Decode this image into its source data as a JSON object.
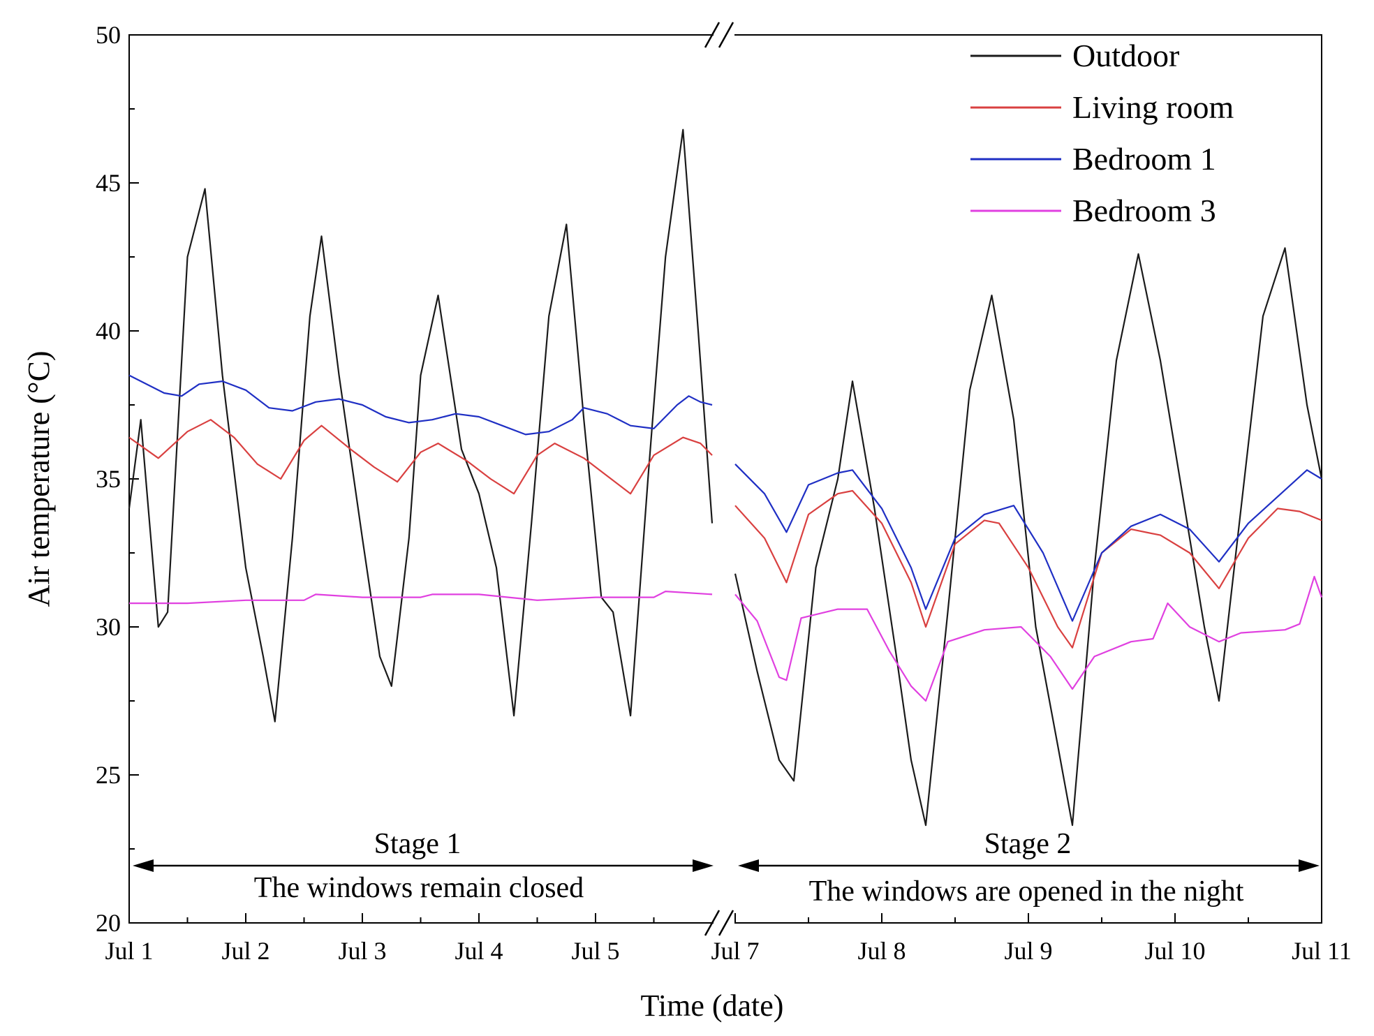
{
  "chart_data": {
    "type": "line",
    "title": "",
    "xlabel": "Time (date)",
    "ylabel": "Air temperature (°C)",
    "ylim": [
      20,
      50
    ],
    "yticks": [
      "20",
      "25",
      "30",
      "35",
      "40",
      "45",
      "50"
    ],
    "xlim_segment1": [
      0,
      5.0
    ],
    "xlim_segment2": [
      6.0,
      10.0
    ],
    "xticks": [
      {
        "day": 0,
        "label": "Jul 1"
      },
      {
        "day": 1,
        "label": "Jul 2"
      },
      {
        "day": 2,
        "label": "Jul 3"
      },
      {
        "day": 3,
        "label": "Jul 4"
      },
      {
        "day": 4,
        "label": "Jul 5"
      },
      {
        "day": 6,
        "label": "Jul 7"
      },
      {
        "day": 7,
        "label": "Jul 8"
      },
      {
        "day": 8,
        "label": "Jul 9"
      },
      {
        "day": 9,
        "label": "Jul 10"
      },
      {
        "day": 10,
        "label": "Jul 11"
      }
    ],
    "legend": {
      "position": "top-right",
      "entries": [
        "Outdoor",
        "Living room",
        "Bedroom 1",
        "Bedroom 3"
      ]
    },
    "annotations": {
      "stage1_title": "Stage 1",
      "stage1_desc": "The windows remain closed",
      "stage2_title": "Stage 2",
      "stage2_desc": "The windows are opened in the night"
    },
    "series": [
      {
        "name": "Outdoor",
        "color": "#1a1a1a",
        "points": [
          [
            0.0,
            34.0
          ],
          [
            0.1,
            37.0
          ],
          [
            0.25,
            30.0
          ],
          [
            0.33,
            30.5
          ],
          [
            0.5,
            42.5
          ],
          [
            0.65,
            44.8
          ],
          [
            0.8,
            38.5
          ],
          [
            1.0,
            32.0
          ],
          [
            1.15,
            29.0
          ],
          [
            1.25,
            26.8
          ],
          [
            1.4,
            33.0
          ],
          [
            1.55,
            40.5
          ],
          [
            1.65,
            43.2
          ],
          [
            1.8,
            38.5
          ],
          [
            2.0,
            33.0
          ],
          [
            2.15,
            29.0
          ],
          [
            2.25,
            28.0
          ],
          [
            2.4,
            33.0
          ],
          [
            2.5,
            38.5
          ],
          [
            2.65,
            41.2
          ],
          [
            2.85,
            36.0
          ],
          [
            3.0,
            34.5
          ],
          [
            3.15,
            32.0
          ],
          [
            3.3,
            27.0
          ],
          [
            3.45,
            33.5
          ],
          [
            3.6,
            40.5
          ],
          [
            3.75,
            43.6
          ],
          [
            3.9,
            37.0
          ],
          [
            4.05,
            31.0
          ],
          [
            4.15,
            30.5
          ],
          [
            4.3,
            27.0
          ],
          [
            4.45,
            35.0
          ],
          [
            4.6,
            42.5
          ],
          [
            4.75,
            46.8
          ],
          [
            4.88,
            40.0
          ],
          [
            5.0,
            33.5
          ],
          [
            6.0,
            31.8
          ],
          [
            6.15,
            28.5
          ],
          [
            6.3,
            25.5
          ],
          [
            6.4,
            24.8
          ],
          [
            6.55,
            32.0
          ],
          [
            6.7,
            35.0
          ],
          [
            6.8,
            38.3
          ],
          [
            6.95,
            34.0
          ],
          [
            7.1,
            29.0
          ],
          [
            7.2,
            25.5
          ],
          [
            7.3,
            23.3
          ],
          [
            7.45,
            30.5
          ],
          [
            7.6,
            38.0
          ],
          [
            7.75,
            41.2
          ],
          [
            7.9,
            37.0
          ],
          [
            8.05,
            30.0
          ],
          [
            8.2,
            26.0
          ],
          [
            8.3,
            23.3
          ],
          [
            8.45,
            32.0
          ],
          [
            8.6,
            39.0
          ],
          [
            8.75,
            42.6
          ],
          [
            8.9,
            39.0
          ],
          [
            9.05,
            34.5
          ],
          [
            9.2,
            30.0
          ],
          [
            9.3,
            27.5
          ],
          [
            9.45,
            34.0
          ],
          [
            9.6,
            40.5
          ],
          [
            9.75,
            42.8
          ],
          [
            9.9,
            37.5
          ],
          [
            10.0,
            35.0
          ]
        ]
      },
      {
        "name": "Living room",
        "color": "#d94040",
        "points": [
          [
            0.0,
            36.4
          ],
          [
            0.25,
            35.7
          ],
          [
            0.5,
            36.6
          ],
          [
            0.7,
            37.0
          ],
          [
            0.9,
            36.4
          ],
          [
            1.1,
            35.5
          ],
          [
            1.3,
            35.0
          ],
          [
            1.5,
            36.3
          ],
          [
            1.65,
            36.8
          ],
          [
            1.9,
            36.0
          ],
          [
            2.1,
            35.4
          ],
          [
            2.3,
            34.9
          ],
          [
            2.5,
            35.9
          ],
          [
            2.65,
            36.2
          ],
          [
            2.9,
            35.6
          ],
          [
            3.1,
            35.0
          ],
          [
            3.3,
            34.5
          ],
          [
            3.5,
            35.8
          ],
          [
            3.65,
            36.2
          ],
          [
            3.9,
            35.7
          ],
          [
            4.1,
            35.1
          ],
          [
            4.3,
            34.5
          ],
          [
            4.5,
            35.8
          ],
          [
            4.75,
            36.4
          ],
          [
            4.9,
            36.2
          ],
          [
            5.0,
            35.8
          ],
          [
            6.0,
            34.1
          ],
          [
            6.2,
            33.0
          ],
          [
            6.35,
            31.5
          ],
          [
            6.5,
            33.8
          ],
          [
            6.7,
            34.5
          ],
          [
            6.8,
            34.6
          ],
          [
            7.0,
            33.5
          ],
          [
            7.2,
            31.5
          ],
          [
            7.3,
            30.0
          ],
          [
            7.5,
            32.8
          ],
          [
            7.7,
            33.6
          ],
          [
            7.8,
            33.5
          ],
          [
            8.0,
            32.0
          ],
          [
            8.2,
            30.0
          ],
          [
            8.3,
            29.3
          ],
          [
            8.5,
            32.5
          ],
          [
            8.7,
            33.3
          ],
          [
            8.9,
            33.1
          ],
          [
            9.1,
            32.5
          ],
          [
            9.3,
            31.3
          ],
          [
            9.5,
            33.0
          ],
          [
            9.7,
            34.0
          ],
          [
            9.85,
            33.9
          ],
          [
            10.0,
            33.6
          ]
        ]
      },
      {
        "name": "Bedroom 1",
        "color": "#1f2fc4",
        "points": [
          [
            0.0,
            38.5
          ],
          [
            0.3,
            37.9
          ],
          [
            0.45,
            37.8
          ],
          [
            0.6,
            38.2
          ],
          [
            0.8,
            38.3
          ],
          [
            1.0,
            38.0
          ],
          [
            1.2,
            37.4
          ],
          [
            1.4,
            37.3
          ],
          [
            1.6,
            37.6
          ],
          [
            1.8,
            37.7
          ],
          [
            2.0,
            37.5
          ],
          [
            2.2,
            37.1
          ],
          [
            2.4,
            36.9
          ],
          [
            2.6,
            37.0
          ],
          [
            2.8,
            37.2
          ],
          [
            3.0,
            37.1
          ],
          [
            3.2,
            36.8
          ],
          [
            3.4,
            36.5
          ],
          [
            3.6,
            36.6
          ],
          [
            3.8,
            37.0
          ],
          [
            3.9,
            37.4
          ],
          [
            4.1,
            37.2
          ],
          [
            4.3,
            36.8
          ],
          [
            4.5,
            36.7
          ],
          [
            4.7,
            37.5
          ],
          [
            4.8,
            37.8
          ],
          [
            4.9,
            37.6
          ],
          [
            5.0,
            37.5
          ],
          [
            6.0,
            35.5
          ],
          [
            6.2,
            34.5
          ],
          [
            6.35,
            33.2
          ],
          [
            6.5,
            34.8
          ],
          [
            6.7,
            35.2
          ],
          [
            6.8,
            35.3
          ],
          [
            7.0,
            34.0
          ],
          [
            7.2,
            32.0
          ],
          [
            7.3,
            30.6
          ],
          [
            7.5,
            33.0
          ],
          [
            7.7,
            33.8
          ],
          [
            7.9,
            34.1
          ],
          [
            8.1,
            32.5
          ],
          [
            8.3,
            30.2
          ],
          [
            8.5,
            32.5
          ],
          [
            8.7,
            33.4
          ],
          [
            8.9,
            33.8
          ],
          [
            9.1,
            33.3
          ],
          [
            9.3,
            32.2
          ],
          [
            9.5,
            33.5
          ],
          [
            9.7,
            34.4
          ],
          [
            9.9,
            35.3
          ],
          [
            10.0,
            35.0
          ]
        ]
      },
      {
        "name": "Bedroom 3",
        "color": "#e040e0",
        "points": [
          [
            0.0,
            30.8
          ],
          [
            0.5,
            30.8
          ],
          [
            1.0,
            30.9
          ],
          [
            1.5,
            30.9
          ],
          [
            1.6,
            31.1
          ],
          [
            2.0,
            31.0
          ],
          [
            2.5,
            31.0
          ],
          [
            2.6,
            31.1
          ],
          [
            3.0,
            31.1
          ],
          [
            3.5,
            30.9
          ],
          [
            4.0,
            31.0
          ],
          [
            4.5,
            31.0
          ],
          [
            4.6,
            31.2
          ],
          [
            5.0,
            31.1
          ],
          [
            6.0,
            31.1
          ],
          [
            6.15,
            30.2
          ],
          [
            6.3,
            28.3
          ],
          [
            6.35,
            28.2
          ],
          [
            6.45,
            30.3
          ],
          [
            6.7,
            30.6
          ],
          [
            6.9,
            30.6
          ],
          [
            7.05,
            29.2
          ],
          [
            7.2,
            28.0
          ],
          [
            7.3,
            27.5
          ],
          [
            7.45,
            29.5
          ],
          [
            7.7,
            29.9
          ],
          [
            7.95,
            30.0
          ],
          [
            8.15,
            29.0
          ],
          [
            8.3,
            27.9
          ],
          [
            8.45,
            29.0
          ],
          [
            8.7,
            29.5
          ],
          [
            8.85,
            29.6
          ],
          [
            8.95,
            30.8
          ],
          [
            9.1,
            30.0
          ],
          [
            9.3,
            29.5
          ],
          [
            9.45,
            29.8
          ],
          [
            9.75,
            29.9
          ],
          [
            9.85,
            30.1
          ],
          [
            9.95,
            31.7
          ],
          [
            10.0,
            31.0
          ]
        ]
      }
    ]
  }
}
